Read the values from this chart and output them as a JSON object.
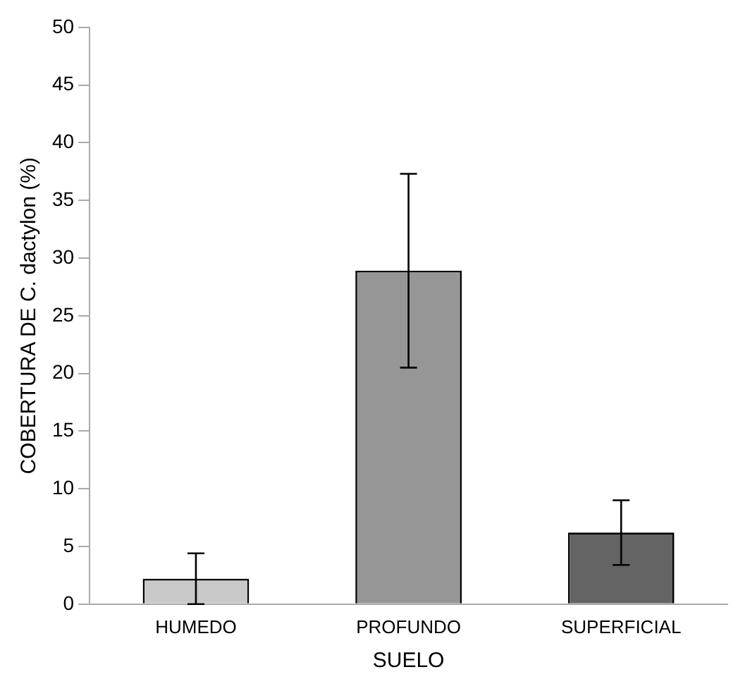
{
  "chart_data": {
    "type": "bar",
    "xlabel": "SUELO",
    "ylabel": "COBERTURA DE C. dactylon (%)",
    "categories": [
      "HUMEDO",
      "PROFUNDO",
      "SUPERFICIAL"
    ],
    "values": [
      2.2,
      28.9,
      6.2
    ],
    "errors": [
      2.2,
      8.4,
      2.8
    ],
    "colors": [
      "#c8c8c8",
      "#969696",
      "#646464"
    ],
    "ylim": [
      0,
      50
    ],
    "yticks": [
      0,
      5,
      10,
      15,
      20,
      25,
      30,
      35,
      40,
      45,
      50
    ],
    "grid": false,
    "legend": false
  }
}
